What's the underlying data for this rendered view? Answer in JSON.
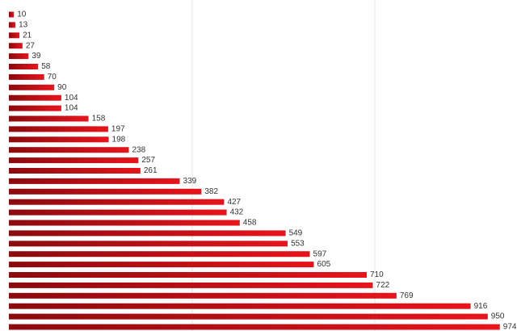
{
  "chart_data": {
    "type": "bar",
    "orientation": "horizontal",
    "categories": [
      null,
      null,
      null,
      null,
      null,
      null,
      null,
      null,
      null,
      null,
      null,
      null,
      null,
      null,
      null,
      null,
      null,
      null,
      null,
      null,
      null,
      null,
      null,
      null,
      null,
      null,
      null,
      null,
      null,
      null,
      null
    ],
    "values": [
      10,
      13,
      21,
      27,
      39,
      58,
      70,
      90,
      104,
      104,
      158,
      197,
      198,
      238,
      257,
      261,
      339,
      382,
      427,
      432,
      458,
      549,
      553,
      597,
      605,
      710,
      722,
      769,
      916,
      950,
      974
    ],
    "color": "#e8141c",
    "xlim": [
      0,
      1000
    ]
  }
}
